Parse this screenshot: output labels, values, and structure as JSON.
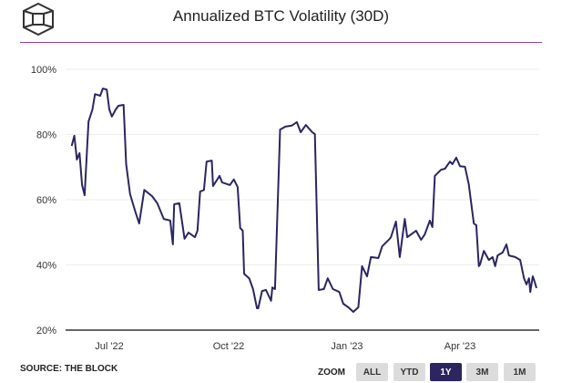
{
  "header": {
    "title": "Annualized BTC Volatility (30D)"
  },
  "footer": {
    "source": "SOURCE: THE BLOCK",
    "zoom_label": "ZOOM",
    "zoom_buttons": [
      "ALL",
      "YTD",
      "1Y",
      "3M",
      "1M"
    ],
    "selected_zoom": "1Y"
  },
  "colors": {
    "line": "#2b2660",
    "rule": "#9b3d9b",
    "selected": "#2b2660"
  },
  "chart_data": {
    "type": "line",
    "title": "Annualized BTC Volatility (30D)",
    "xlabel": "",
    "ylabel": "",
    "x_unit": "days since 2022-07-01",
    "x_ticks": [
      {
        "x": 0,
        "label": "Jul '22"
      },
      {
        "x": 92,
        "label": "Oct '22"
      },
      {
        "x": 184,
        "label": "Jan '23"
      },
      {
        "x": 274,
        "label": "Apr '23"
      }
    ],
    "y_ticks": [
      {
        "y": 20,
        "label": "20%"
      },
      {
        "y": 40,
        "label": "40%"
      },
      {
        "y": 60,
        "label": "60%"
      },
      {
        "y": 80,
        "label": "80%"
      },
      {
        "y": 100,
        "label": "100%"
      }
    ],
    "ylim": [
      20,
      100
    ],
    "grid": true,
    "series": [
      {
        "name": "Annualized BTC Volatility (30D)",
        "points": [
          [
            -29,
            76.5
          ],
          [
            -27,
            79.6
          ],
          [
            -25,
            72.3
          ],
          [
            -23,
            74.3
          ],
          [
            -21,
            64.5
          ],
          [
            -19,
            61.4
          ],
          [
            -16,
            84
          ],
          [
            -13,
            87.7
          ],
          [
            -11,
            92.4
          ],
          [
            -7,
            91.9
          ],
          [
            -5,
            94.1
          ],
          [
            -2,
            93.8
          ],
          [
            0,
            87.7
          ],
          [
            2,
            85.5
          ],
          [
            5,
            87.7
          ],
          [
            7,
            88.8
          ],
          [
            11,
            89.1
          ],
          [
            13,
            70.9
          ],
          [
            16,
            61.7
          ],
          [
            20,
            56.4
          ],
          [
            23,
            52.7
          ],
          [
            27,
            63
          ],
          [
            33,
            61.1
          ],
          [
            37,
            58.9
          ],
          [
            42,
            54.1
          ],
          [
            47,
            53.6
          ],
          [
            49,
            46.3
          ],
          [
            50,
            58.6
          ],
          [
            54,
            58.9
          ],
          [
            58,
            48
          ],
          [
            61,
            49.9
          ],
          [
            66,
            48.5
          ],
          [
            68,
            50.5
          ],
          [
            70,
            62.5
          ],
          [
            73,
            63
          ],
          [
            75,
            71.7
          ],
          [
            79,
            72
          ],
          [
            80,
            64.2
          ],
          [
            85,
            67.3
          ],
          [
            87,
            65.3
          ],
          [
            93,
            64.5
          ],
          [
            96,
            66.2
          ],
          [
            99,
            63.9
          ],
          [
            101,
            51.3
          ],
          [
            103,
            50.5
          ],
          [
            104,
            37.3
          ],
          [
            108,
            35.9
          ],
          [
            111,
            32.6
          ],
          [
            114,
            26.7
          ],
          [
            115,
            26.7
          ],
          [
            118,
            32
          ],
          [
            121,
            32.3
          ],
          [
            125,
            29
          ],
          [
            126,
            33.1
          ],
          [
            128,
            32.6
          ],
          [
            132,
            81.5
          ],
          [
            136,
            82.4
          ],
          [
            141,
            82.7
          ],
          [
            145,
            83.8
          ],
          [
            148,
            80.7
          ],
          [
            152,
            82.9
          ],
          [
            157,
            80.7
          ],
          [
            159,
            80.1
          ],
          [
            162,
            32.3
          ],
          [
            166,
            32.6
          ],
          [
            169,
            35.9
          ],
          [
            173,
            32.6
          ],
          [
            178,
            31.7
          ],
          [
            181,
            28.1
          ],
          [
            185,
            27
          ],
          [
            189,
            25.6
          ],
          [
            193,
            27
          ],
          [
            196,
            39.6
          ],
          [
            200,
            36.5
          ],
          [
            203,
            42.4
          ],
          [
            209,
            42.1
          ],
          [
            212,
            45.7
          ],
          [
            218,
            48
          ],
          [
            219,
            48.5
          ],
          [
            223,
            53.3
          ],
          [
            226,
            42.4
          ],
          [
            230,
            54.1
          ],
          [
            232,
            48.5
          ],
          [
            239,
            50.5
          ],
          [
            243,
            47.7
          ],
          [
            246,
            49.4
          ],
          [
            250,
            53.6
          ],
          [
            252,
            51.6
          ],
          [
            254,
            67.3
          ],
          [
            259,
            69.2
          ],
          [
            262,
            69.5
          ],
          [
            266,
            71.7
          ],
          [
            268,
            70.9
          ],
          [
            271,
            72.9
          ],
          [
            274,
            70.3
          ],
          [
            278,
            70.1
          ],
          [
            281,
            64.8
          ],
          [
            285,
            52.7
          ],
          [
            287,
            52.2
          ],
          [
            289,
            39.6
          ],
          [
            290,
            40.1
          ],
          [
            293,
            44.3
          ],
          [
            297,
            41.5
          ],
          [
            300,
            42.4
          ],
          [
            302,
            39.6
          ],
          [
            304,
            42.9
          ],
          [
            308,
            43.8
          ],
          [
            311,
            46.3
          ],
          [
            313,
            42.9
          ],
          [
            318,
            42.4
          ],
          [
            322,
            41.5
          ],
          [
            325,
            35.9
          ],
          [
            327,
            34
          ],
          [
            329,
            35.9
          ],
          [
            330,
            31.7
          ],
          [
            332,
            36.5
          ],
          [
            333,
            35.4
          ],
          [
            335,
            32.9
          ]
        ]
      }
    ]
  }
}
